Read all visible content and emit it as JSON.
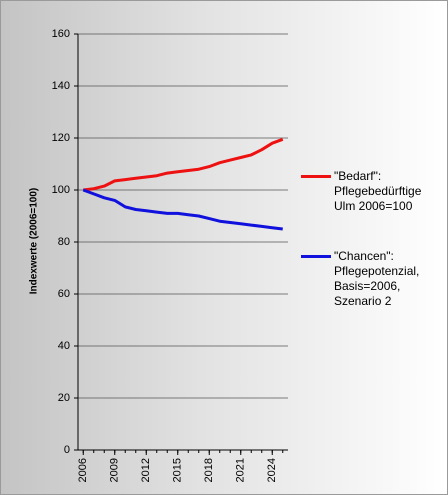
{
  "chart_data": {
    "type": "line",
    "y_label": "Indexwerte (2006=100)",
    "x": [
      2006,
      2007,
      2008,
      2009,
      2010,
      2011,
      2012,
      2013,
      2014,
      2015,
      2016,
      2017,
      2018,
      2019,
      2020,
      2021,
      2022,
      2023,
      2024,
      2025
    ],
    "series": [
      {
        "name": "\"Bedarf\": Pflegebedürftige Ulm 2006=100",
        "color": "#ee1111",
        "values": [
          100,
          100.5,
          101.5,
          103.5,
          104,
          104.5,
          105,
          105.5,
          106.5,
          107,
          107.5,
          108,
          109,
          110.5,
          111.5,
          112.5,
          113.5,
          115.5,
          118,
          119.5
        ]
      },
      {
        "name": "\"Chancen\": Pflegepotenzial, Basis=2006, Szenario 2",
        "color": "#1111dd",
        "values": [
          100,
          98.5,
          97,
          96,
          93.5,
          92.5,
          92,
          91.5,
          91,
          91,
          90.5,
          90,
          89,
          88,
          87.5,
          87,
          86.5,
          86,
          85.5,
          85
        ]
      }
    ],
    "xlim": [
      2005.5,
      2025.5
    ],
    "xticks": [
      2006,
      2009,
      2012,
      2015,
      2018,
      2021,
      2024
    ],
    "ylim": [
      0,
      160
    ],
    "yticks": [
      0,
      20,
      40,
      60,
      80,
      100,
      120,
      140,
      160
    ],
    "grid": true,
    "legend": "right"
  }
}
